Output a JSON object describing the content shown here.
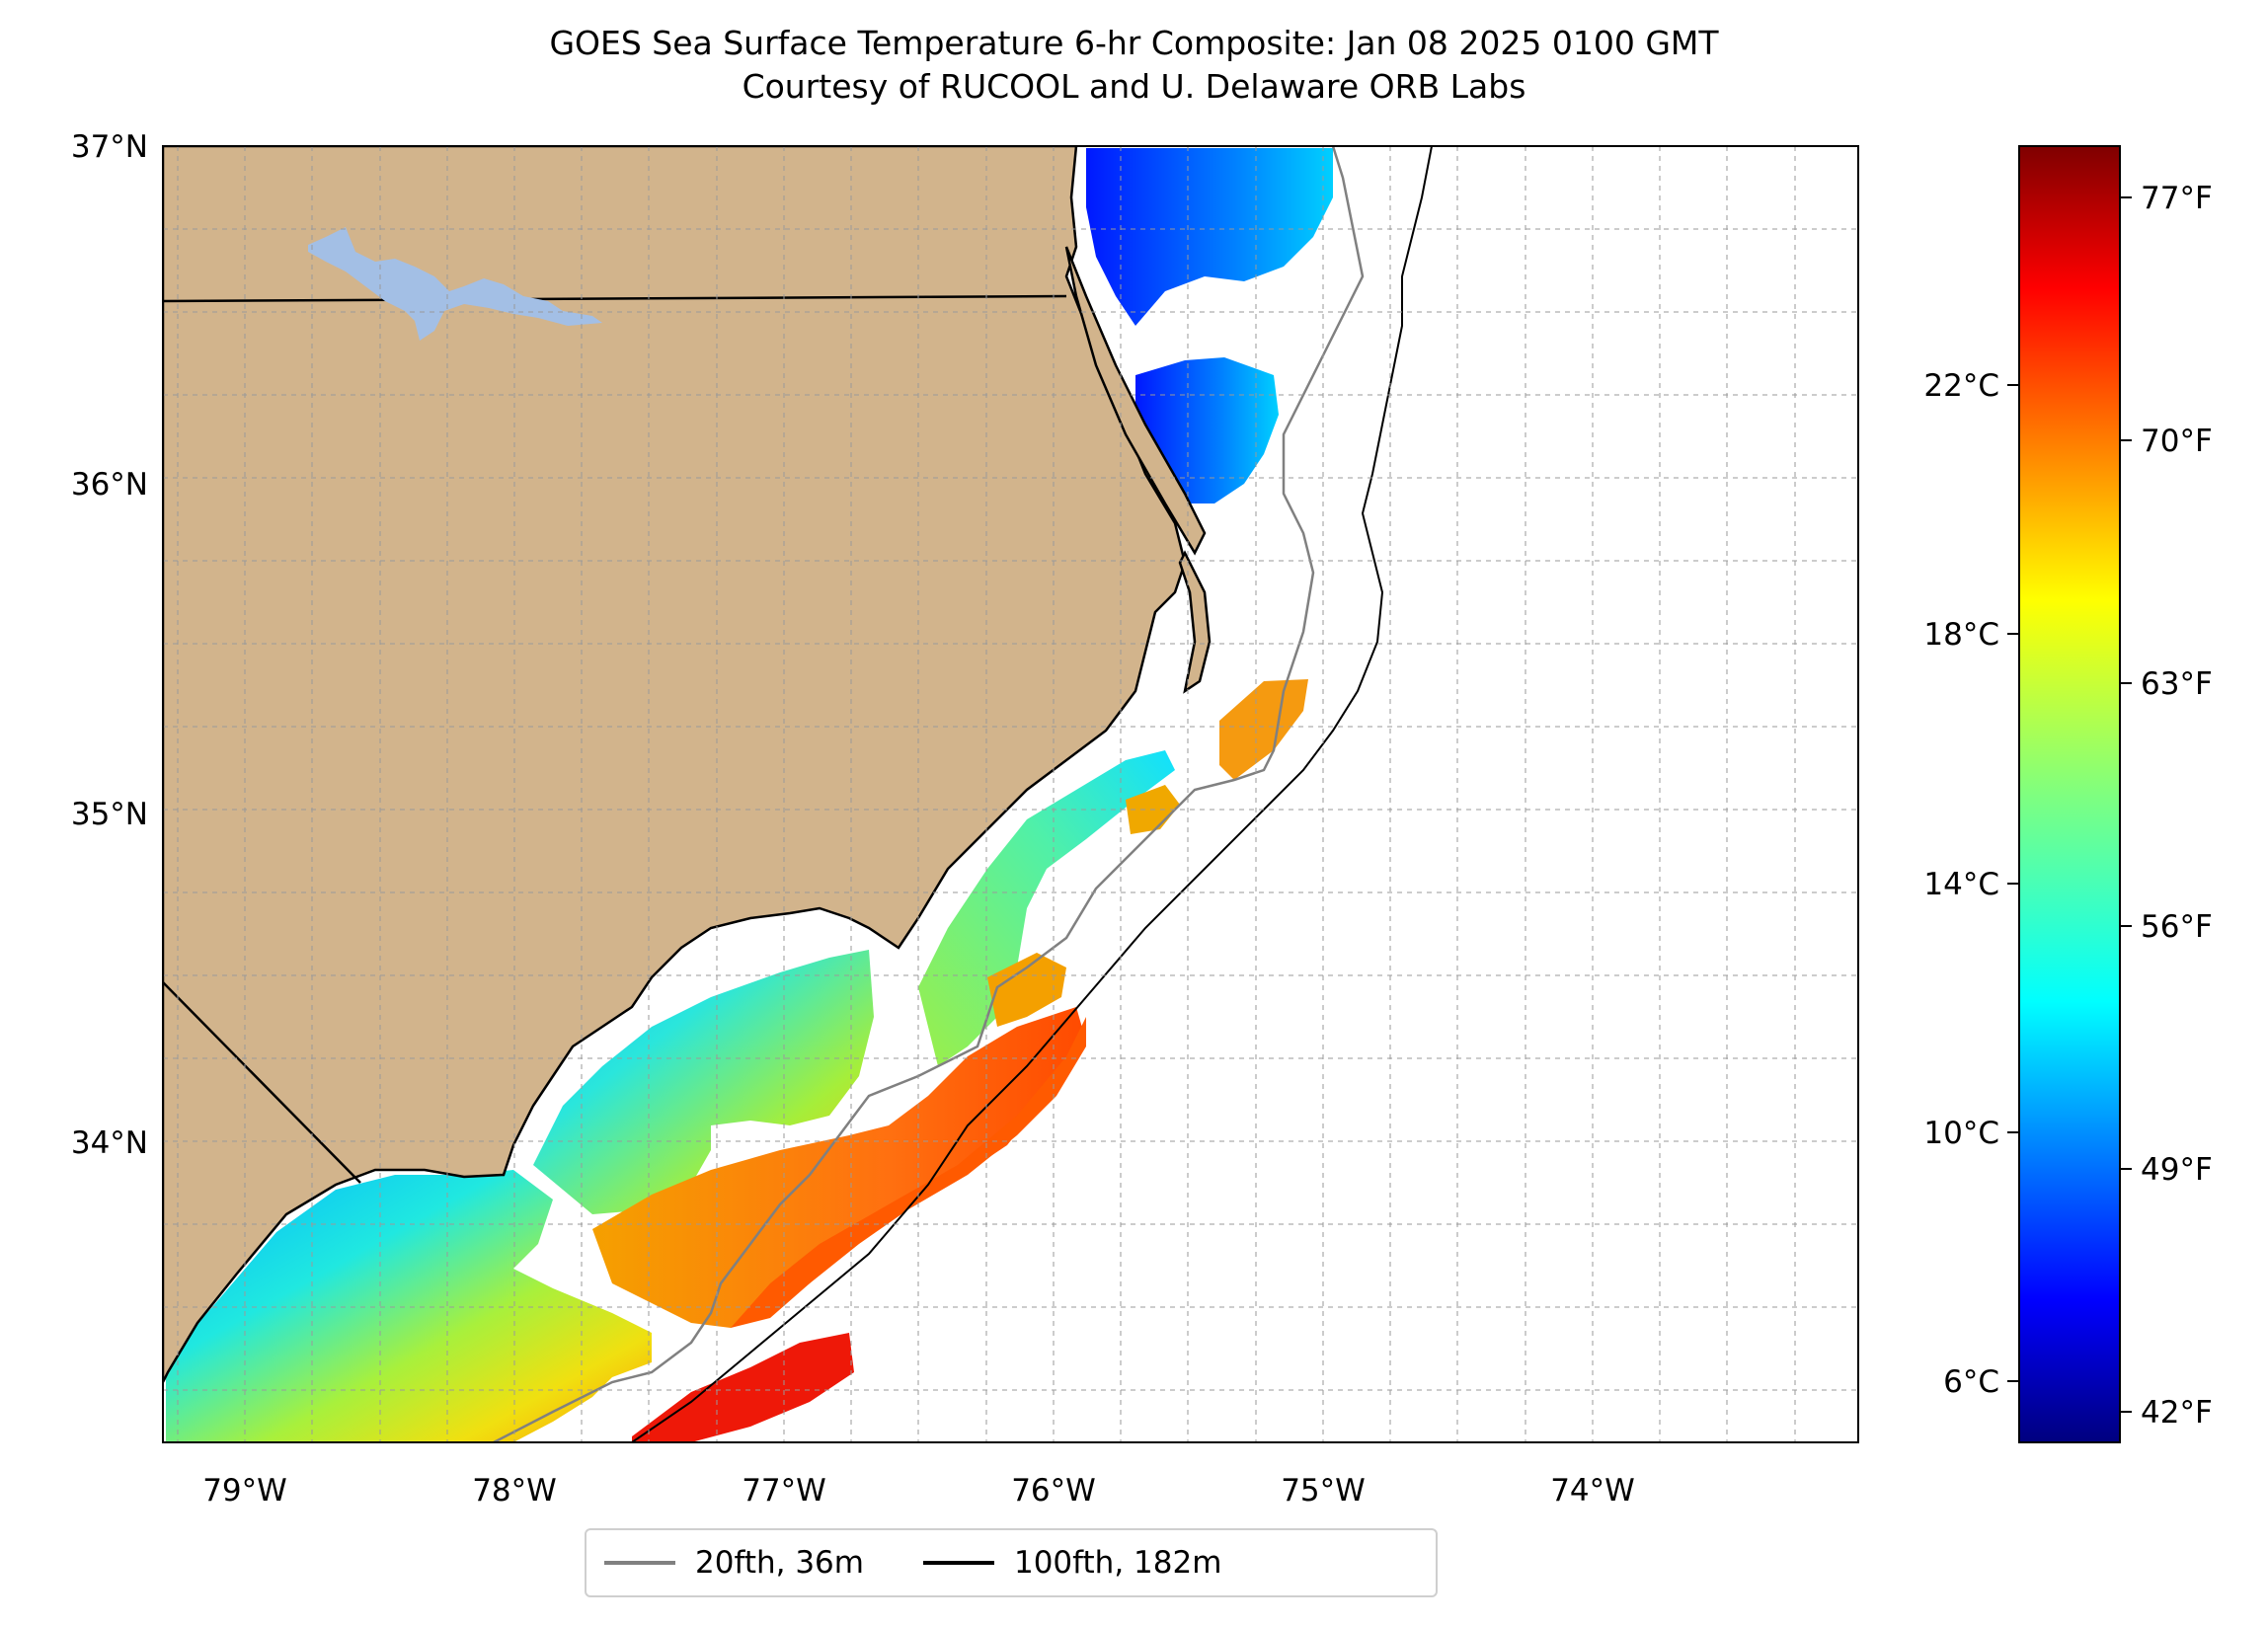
{
  "title": {
    "line1": "GOES Sea Surface Temperature 6-hr Composite: Jan 08 2025 0100 GMT",
    "line2": "Courtesy of RUCOOL and U. Delaware ORB Labs"
  },
  "map": {
    "lat_range": [
      33.1,
      37.0
    ],
    "lon_range": [
      -79.3,
      -73.0
    ],
    "lat_labels": [
      "37°N",
      "36°N",
      "35°N",
      "34°N"
    ],
    "lon_labels": [
      "79°W",
      "78°W",
      "77°W",
      "76°W",
      "75°W",
      "74°W"
    ],
    "land_color": "#d2b48c",
    "lake_color": "#a3bfe5",
    "grid": "dashed light gray",
    "projection": "plate carree"
  },
  "colorbar": {
    "colormap": "jet",
    "range_c": [
      5.2,
      26.0
    ],
    "celsius_labels": [
      "22°C",
      "18°C",
      "14°C",
      "10°C",
      "6°C"
    ],
    "fahrenheit_labels": [
      "77°F",
      "70°F",
      "63°F",
      "56°F",
      "49°F",
      "42°F"
    ]
  },
  "legend": {
    "items": [
      {
        "label": "20fth, 36m",
        "color": "#808080"
      },
      {
        "label": "100fth, 182m",
        "color": "#000000"
      }
    ]
  }
}
